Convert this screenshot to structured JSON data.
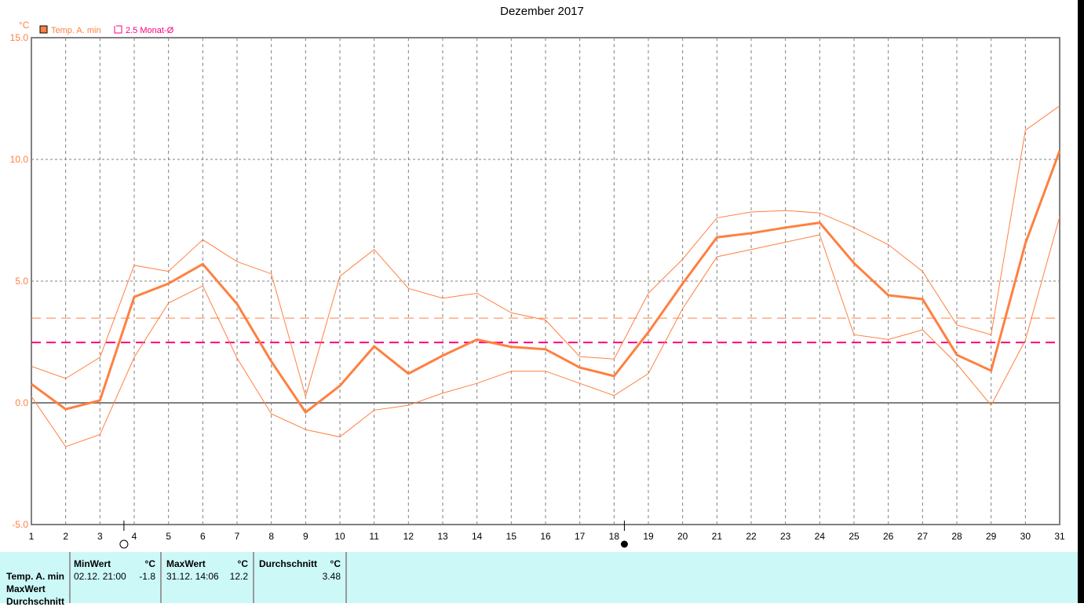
{
  "chart_data": {
    "type": "line",
    "title": "Dezember 2017",
    "ylabel": "°C",
    "ylim": [
      -5,
      15
    ],
    "yticks": [
      "15.0",
      "10.0",
      "5.0",
      "0.0",
      "-5.0"
    ],
    "xlim": [
      1,
      31
    ],
    "x": [
      1,
      2,
      3,
      4,
      5,
      6,
      7,
      8,
      9,
      10,
      11,
      12,
      13,
      14,
      15,
      16,
      17,
      18,
      19,
      20,
      21,
      22,
      23,
      24,
      25,
      26,
      27,
      28,
      29,
      30,
      31
    ],
    "grid": true,
    "legend": [
      {
        "name": "Temp. A. min",
        "color": "#ff8040"
      },
      {
        "name": "2.5 Monat-Ø",
        "color": "#ff0080"
      }
    ],
    "legend_placement": "top-left",
    "series": [
      {
        "name": "Temp. A. min",
        "values": [
          0.77,
          -0.26,
          0.1,
          4.35,
          4.9,
          5.7,
          4.06,
          1.7,
          -0.39,
          0.7,
          2.32,
          1.2,
          1.94,
          2.6,
          2.3,
          2.2,
          1.45,
          1.1,
          2.9,
          4.9,
          6.8,
          6.97,
          7.2,
          7.4,
          5.74,
          4.42,
          4.26,
          1.97,
          1.32,
          6.55,
          10.35
        ]
      },
      {
        "values": [
          1.5,
          1.0,
          1.87,
          5.65,
          5.4,
          6.7,
          5.8,
          5.3,
          0.26,
          5.2,
          6.3,
          4.7,
          4.3,
          4.5,
          3.7,
          3.4,
          1.9,
          1.8,
          4.5,
          5.9,
          7.6,
          7.84,
          7.9,
          7.8,
          7.2,
          6.5,
          5.4,
          3.2,
          2.8,
          11.2,
          12.2
        ]
      },
      {
        "values": [
          0.26,
          -1.8,
          -1.3,
          1.87,
          4.1,
          4.8,
          1.84,
          -0.45,
          -1.1,
          -1.4,
          -0.3,
          -0.1,
          0.4,
          0.8,
          1.3,
          1.3,
          0.8,
          0.3,
          1.2,
          3.87,
          6.0,
          6.3,
          6.6,
          6.9,
          2.8,
          2.6,
          3.0,
          1.6,
          -0.1,
          2.58,
          7.65
        ]
      }
    ],
    "reference_lines": [
      {
        "name": "2.5 Monat-Ø",
        "value": 2.48,
        "color": "#ff0080"
      },
      {
        "value": 3.48,
        "color": "#ff8040"
      }
    ],
    "moon_phases": [
      {
        "day": 3.7,
        "phase": "full-moon"
      },
      {
        "day": 18.3,
        "phase": "new-moon"
      }
    ]
  },
  "table": {
    "row_labels": [
      "Temp. A. min",
      "MaxWert",
      "Durchschnitt"
    ],
    "min": {
      "header": "MinWert",
      "unit": "°C",
      "date": "02.12.  21:00",
      "value": "-1.8"
    },
    "max": {
      "header": "MaxWert",
      "unit": "°C",
      "date": "31.12.  14:06",
      "value": "12.2"
    },
    "avg": {
      "header": "Durchschnitt",
      "unit": "°C",
      "value": "3.48"
    }
  }
}
